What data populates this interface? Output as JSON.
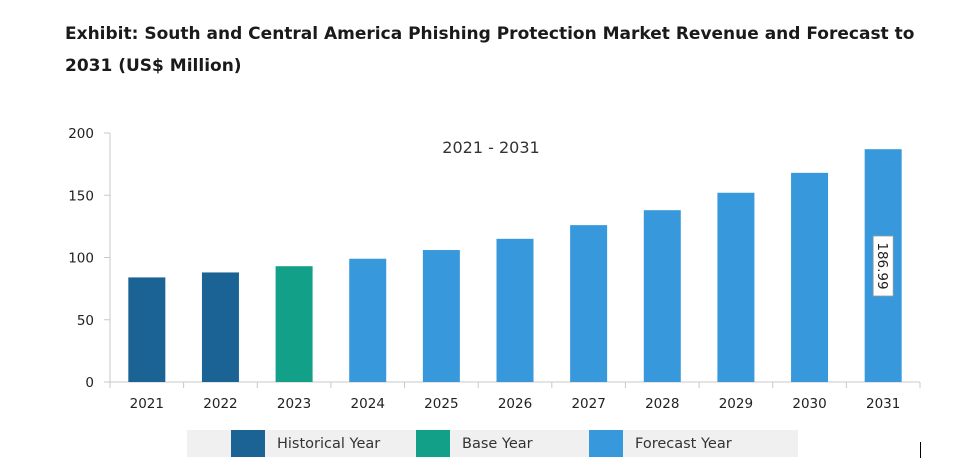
{
  "title": "Exhibit: South and Central America Phishing Protection Market Revenue and Forecast to 2031 (US$ Million)",
  "chart_data": {
    "type": "bar",
    "categories": [
      "2021",
      "2022",
      "2023",
      "2024",
      "2025",
      "2026",
      "2027",
      "2028",
      "2029",
      "2030",
      "2031"
    ],
    "values": [
      84,
      88,
      93,
      99,
      106,
      115,
      126,
      138,
      152,
      168,
      186.99
    ],
    "bar_types": [
      "historical",
      "historical",
      "base",
      "forecast",
      "forecast",
      "forecast",
      "forecast",
      "forecast",
      "forecast",
      "forecast",
      "forecast"
    ],
    "ylim": [
      0,
      200
    ],
    "yticks": [
      0,
      50,
      100,
      150,
      200
    ],
    "range_label": "2021 - 2031",
    "data_label": {
      "index": 10,
      "text": "186.99"
    },
    "grid": false,
    "legend_placement": "bottom"
  },
  "legend": [
    {
      "key": "historical",
      "label": "Historical Year",
      "color": "#1b6394"
    },
    {
      "key": "base",
      "label": "Base Year",
      "color": "#13a089"
    },
    {
      "key": "forecast",
      "label": "Forecast Year",
      "color": "#3799db"
    }
  ]
}
